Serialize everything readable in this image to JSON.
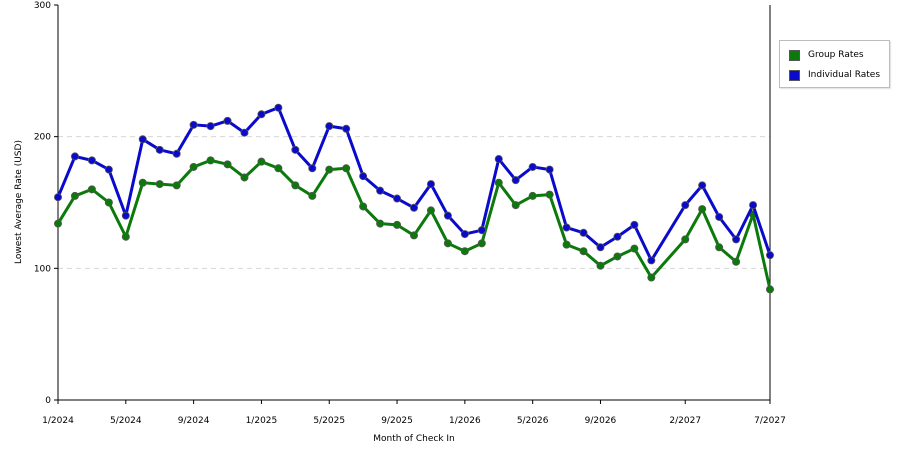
{
  "chart_data": {
    "type": "line",
    "title": "",
    "xlabel": "Month of Check In",
    "ylabel": "Lowest Average Rate (USD)",
    "ylim": [
      0,
      300
    ],
    "yticks": [
      "0",
      "100",
      "200",
      "300"
    ],
    "xlim": [
      "1/2024",
      "7/2027"
    ],
    "xticks": [
      "1/2024",
      "5/2024",
      "9/2024",
      "1/2025",
      "5/2025",
      "9/2025",
      "1/2026",
      "5/2026",
      "9/2026",
      "2/2027",
      "7/2027"
    ],
    "grid": true,
    "legend_position": "right",
    "x": [
      "1/2024",
      "2/2024",
      "3/2024",
      "4/2024",
      "5/2024",
      "6/2024",
      "7/2024",
      "8/2024",
      "9/2024",
      "10/2024",
      "11/2024",
      "12/2024",
      "1/2025",
      "2/2025",
      "3/2025",
      "4/2025",
      "5/2025",
      "6/2025",
      "7/2025",
      "8/2025",
      "9/2025",
      "10/2025",
      "11/2025",
      "12/2025",
      "1/2026",
      "2/2026",
      "3/2026",
      "4/2026",
      "5/2026",
      "6/2026",
      "7/2026",
      "8/2026",
      "9/2026",
      "10/2026",
      "11/2026",
      "12/2026",
      "2/2027",
      "3/2027",
      "4/2027",
      "5/2027",
      "6/2027",
      "7/2027"
    ],
    "series": [
      {
        "name": "Group Rates",
        "color": "#0a7a0a",
        "values": [
          134,
          155,
          160,
          150,
          124,
          165,
          164,
          163,
          177,
          182,
          179,
          169,
          181,
          176,
          163,
          155,
          175,
          176,
          147,
          134,
          133,
          125,
          144,
          119,
          113,
          119,
          165,
          148,
          155,
          156,
          118,
          113,
          102,
          109,
          115,
          93,
          122,
          145,
          116,
          105,
          141,
          84
        ]
      },
      {
        "name": "Individual Rates",
        "color": "#0a0acc",
        "values": [
          154,
          185,
          182,
          175,
          140,
          198,
          190,
          187,
          209,
          208,
          212,
          203,
          217,
          222,
          190,
          176,
          208,
          206,
          170,
          159,
          153,
          146,
          164,
          140,
          126,
          129,
          183,
          167,
          177,
          175,
          131,
          127,
          116,
          124,
          133,
          106,
          148,
          163,
          139,
          122,
          148,
          110
        ]
      }
    ]
  }
}
